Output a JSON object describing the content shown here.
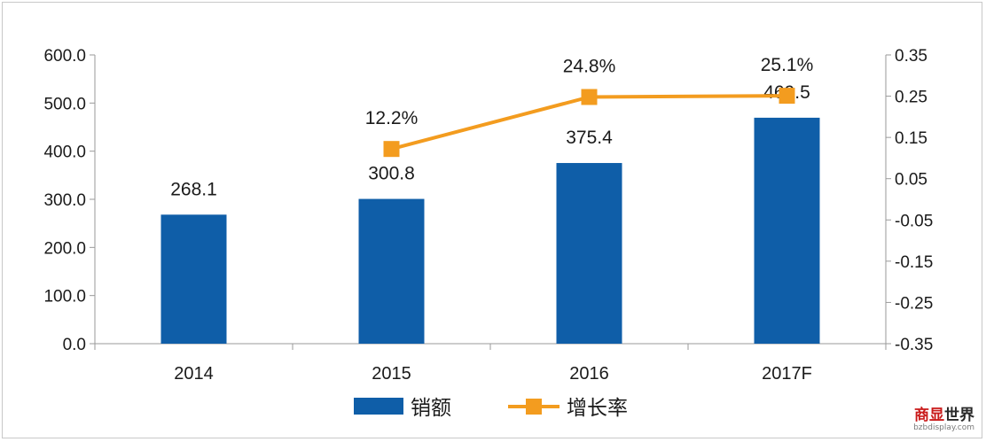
{
  "chart_data": {
    "type": "bar",
    "categories": [
      "2014",
      "2015",
      "2016",
      "2017F"
    ],
    "series": [
      {
        "name": "销额",
        "kind": "bar",
        "axis": "left",
        "color": "#0f5ea8",
        "values": [
          268.1,
          300.8,
          375.4,
          469.5
        ],
        "labels": [
          "268.1",
          "300.8",
          "375.4",
          "469.5"
        ]
      },
      {
        "name": "增长率",
        "kind": "line",
        "axis": "right",
        "color": "#f39c1f",
        "values": [
          null,
          0.122,
          0.248,
          0.251
        ],
        "labels": [
          "",
          "12.2%",
          "24.8%",
          "25.1%"
        ]
      }
    ],
    "y_left": {
      "ylim": [
        0,
        600
      ],
      "ticks": [
        "600.0",
        "500.0",
        "400.0",
        "300.0",
        "200.0",
        "100.0",
        "0.0"
      ]
    },
    "y_right": {
      "ylim": [
        -0.35,
        0.35
      ],
      "ticks": [
        "0.35",
        "0.25",
        "0.15",
        "0.05",
        "-0.05",
        "-0.15",
        "-0.25",
        "-0.35"
      ]
    },
    "grid": false,
    "legend_position": "bottom"
  },
  "watermark": {
    "main_red": "商显",
    "main_dark": "世界",
    "sub": "bzbdisplay.com"
  }
}
